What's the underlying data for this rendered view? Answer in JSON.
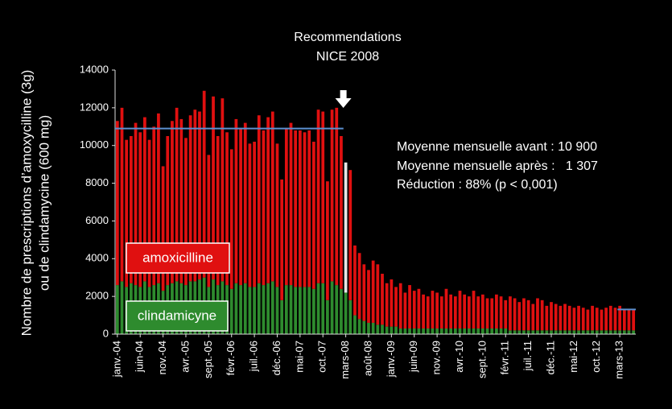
{
  "chart_data": {
    "type": "stacked-bar",
    "title_lines": [
      "Recommendations",
      "NICE 2008"
    ],
    "y_label_lines": [
      "Nombre de prescriptions d’amoxycilline (3g)",
      "ou de clindamycine (600 mg)"
    ],
    "annotations": [
      "Moyenne mensuelle avant : 10 900",
      "Moyenne mensuelle après :   1 307",
      "Réduction : 88% (p < 0,001)"
    ],
    "categories": [
      "janv.-04",
      null,
      null,
      null,
      null,
      "juin-04",
      null,
      null,
      null,
      null,
      "nov.-04",
      null,
      null,
      null,
      null,
      "avr.-05",
      null,
      null,
      null,
      null,
      "sept.-05",
      null,
      null,
      null,
      null,
      "févr.-06",
      null,
      null,
      null,
      null,
      "juil.-06",
      null,
      null,
      null,
      null,
      "déc.-06",
      null,
      null,
      null,
      null,
      "mai-07",
      null,
      null,
      null,
      null,
      "oct.-07",
      null,
      null,
      null,
      null,
      "mars-08",
      null,
      null,
      null,
      null,
      "août-08",
      null,
      null,
      null,
      null,
      "janv.-09",
      null,
      null,
      null,
      null,
      "juin-09",
      null,
      null,
      null,
      null,
      "nov.-09",
      null,
      null,
      null,
      null,
      "avr.-10",
      null,
      null,
      null,
      null,
      "sept.-10",
      null,
      null,
      null,
      null,
      "févr.-11",
      null,
      null,
      null,
      null,
      "juil.-11",
      null,
      null,
      null,
      null,
      "déc.-11",
      null,
      null,
      null,
      null,
      "mai-12",
      null,
      null,
      null,
      null,
      "oct.-12",
      null,
      null,
      null,
      null,
      "mars-13",
      null,
      null,
      null
    ],
    "series": [
      {
        "name": "clindamicyne",
        "color": "#2e8b2e",
        "values": [
          2600,
          2800,
          2500,
          2700,
          2600,
          2500,
          2800,
          2500,
          2600,
          2700,
          2300,
          2600,
          2700,
          2800,
          2700,
          2600,
          2800,
          2800,
          2900,
          3000,
          2500,
          2900,
          2600,
          2800,
          2600,
          2400,
          2700,
          2600,
          2700,
          2500,
          2500,
          2700,
          2600,
          2700,
          2800,
          2500,
          1800,
          2600,
          2600,
          2500,
          2500,
          2500,
          2500,
          2400,
          2700,
          2700,
          1800,
          2800,
          2600,
          2400,
          2200,
          1800,
          1000,
          800,
          700,
          600,
          600,
          500,
          500,
          400,
          400,
          400,
          300,
          300,
          300,
          300,
          300,
          300,
          300,
          300,
          300,
          300,
          300,
          300,
          300,
          300,
          300,
          300,
          300,
          300,
          300,
          300,
          300,
          300,
          300,
          300,
          200,
          200,
          200,
          200,
          200,
          200,
          200,
          200,
          200,
          200,
          200,
          200,
          200,
          200,
          200,
          200,
          200,
          200,
          200,
          200,
          200,
          200,
          200,
          200,
          200,
          200,
          200,
          200
        ]
      },
      {
        "name": "amoxicilline",
        "color": "#e01010",
        "values": [
          8700,
          9200,
          7800,
          7800,
          8600,
          8200,
          8700,
          7800,
          8400,
          9000,
          6600,
          7900,
          8600,
          9200,
          8700,
          7800,
          8800,
          9100,
          8900,
          9900,
          7000,
          9700,
          7900,
          9700,
          8100,
          7400,
          8700,
          8300,
          8500,
          7600,
          7700,
          8900,
          8200,
          8800,
          9000,
          7600,
          6400,
          8300,
          8600,
          8300,
          8300,
          8200,
          8300,
          7800,
          9200,
          9100,
          6300,
          9100,
          9400,
          8100,
          6900,
          6900,
          3700,
          3500,
          3000,
          2800,
          3300,
          3200,
          2700,
          2300,
          2500,
          2100,
          2400,
          1900,
          2300,
          2000,
          2100,
          1800,
          1700,
          2000,
          1900,
          1700,
          2100,
          1800,
          1700,
          2000,
          1800,
          1700,
          2000,
          1700,
          1800,
          1600,
          1600,
          1800,
          1700,
          1500,
          1800,
          1700,
          1500,
          1700,
          1600,
          1400,
          1700,
          1600,
          1300,
          1500,
          1400,
          1300,
          1400,
          1300,
          1200,
          1300,
          1200,
          1100,
          1300,
          1200,
          1100,
          1200,
          1300,
          1200,
          1300,
          1100,
          1100,
          1100
        ]
      }
    ],
    "highlight_category": "mars-08",
    "highlight_color": "#e6e6e6",
    "reference_lines": [
      {
        "value": 10900,
        "from": "janv.-04",
        "to": "mars-08",
        "color": "#5b8fd0"
      },
      {
        "value": 1307,
        "from": "mars-13",
        "color": "#5b8fd0"
      }
    ],
    "ylim": [
      0,
      14000
    ],
    "yticks": [
      0,
      2000,
      4000,
      6000,
      8000,
      10000,
      12000,
      14000
    ]
  }
}
